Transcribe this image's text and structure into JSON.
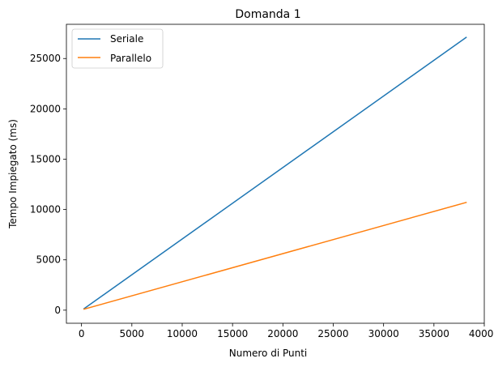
{
  "chart_data": {
    "type": "line",
    "title": "Domanda 1",
    "xlabel": "Numero di Punti",
    "ylabel": "Tempo Impiegato (ms)",
    "xlim": [
      -1500,
      40000
    ],
    "ylim": [
      -1300,
      28400
    ],
    "xticks": [
      0,
      5000,
      10000,
      15000,
      20000,
      25000,
      30000,
      35000,
      40000
    ],
    "yticks": [
      0,
      5000,
      10000,
      15000,
      20000,
      25000
    ],
    "grid": false,
    "legend_position": "top-left",
    "series": [
      {
        "name": "Seriale",
        "color": "#1f77b4",
        "x": [
          250,
          38200
        ],
        "y": [
          150,
          27100
        ]
      },
      {
        "name": "Parallelo",
        "color": "#ff7f0e",
        "x": [
          250,
          38200
        ],
        "y": [
          100,
          10700
        ]
      }
    ]
  }
}
